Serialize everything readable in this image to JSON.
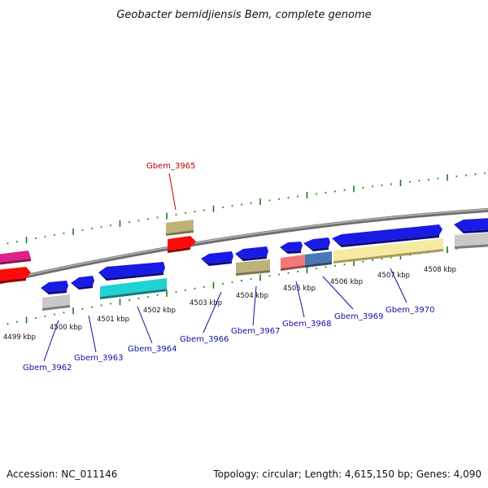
{
  "header": {
    "title": "Geobacter bemidjiensis Bem, complete genome"
  },
  "footer": {
    "accession": "Accession: NC_011146",
    "summary": "Topology: circular; Length: 4,615,150 bp; Genes: 4,090"
  },
  "colors": {
    "backbone": "#8c8c8c",
    "tick": "#1a7a1a",
    "label_forward": "#c00000",
    "label_reverse": "#1010a0",
    "leader_forward": "#c00000",
    "leader_reverse": "#1010a0"
  },
  "scale_labels": [
    "4499 kbp",
    "4500 kbp",
    "4501 kbp",
    "4502 kbp",
    "4503 kbp",
    "4504 kbp",
    "4505 kbp",
    "4506 kbp",
    "4507 kbp",
    "4508 kbp"
  ],
  "gene_labels": {
    "gbem_3962": "Gbem_3962",
    "gbem_3963": "Gbem_3963",
    "gbem_3964": "Gbem_3964",
    "gbem_3965": "Gbem_3965",
    "gbem_3966": "Gbem_3966",
    "gbem_3967": "Gbem_3967",
    "gbem_3968": "Gbem_3968",
    "gbem_3969": "Gbem_3969",
    "gbem_3970": "Gbem_3970"
  }
}
